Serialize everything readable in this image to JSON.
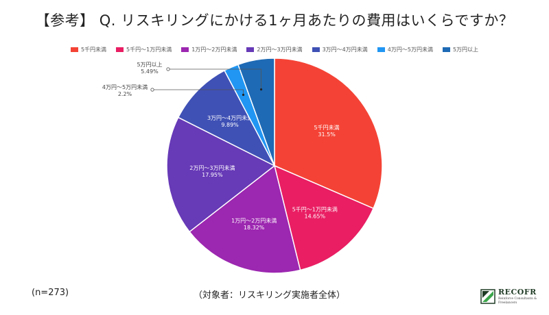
{
  "title": "【参考】 Q. リスキリングにかける1ヶ月あたりの費用はいくらですか？",
  "sample_size": "(n=273)",
  "subject": "（対象者：リスキリング実施者全体）",
  "logo": {
    "name": "RECOFR",
    "tagline_1": "Reinforce Consultants &",
    "tagline_2": "Freelancers"
  },
  "colors": {
    "background": "#ffffff",
    "leader_line": "#555555",
    "outside_label": "#444444",
    "inside_label": "#ffffff",
    "logo_green": "#3aa64a",
    "logo_dark": "#1f3b25"
  },
  "chart_data": {
    "type": "pie",
    "title": "【参考】 Q. リスキリングにかける1ヶ月あたりの費用はいくらですか？",
    "legend_position": "top",
    "start": "12 o'clock, clockwise",
    "slices": [
      {
        "label": "5千円未満",
        "value": 31.5,
        "value_label": "31.5%",
        "color": "#f44336",
        "label_placement": "inside"
      },
      {
        "label": "5千円〜1万円未満",
        "value": 14.65,
        "value_label": "14.65%",
        "color": "#e91e63",
        "label_placement": "inside"
      },
      {
        "label": "1万円〜2万円未満",
        "value": 18.32,
        "value_label": "18.32%",
        "color": "#9c27b0",
        "label_placement": "inside"
      },
      {
        "label": "2万円〜3万円未満",
        "value": 17.95,
        "value_label": "17.95%",
        "color": "#673ab7",
        "label_placement": "inside"
      },
      {
        "label": "3万円〜4万円未満",
        "value": 9.89,
        "value_label": "9.89%",
        "color": "#3f51b5",
        "label_placement": "inside"
      },
      {
        "label": "4万円〜5万円未満",
        "value": 2.2,
        "value_label": "2.2%",
        "color": "#2196f3",
        "label_placement": "outside"
      },
      {
        "label": "5万円以上",
        "value": 5.49,
        "value_label": "5.49%",
        "color": "#1e6ab5",
        "label_placement": "outside"
      }
    ]
  }
}
